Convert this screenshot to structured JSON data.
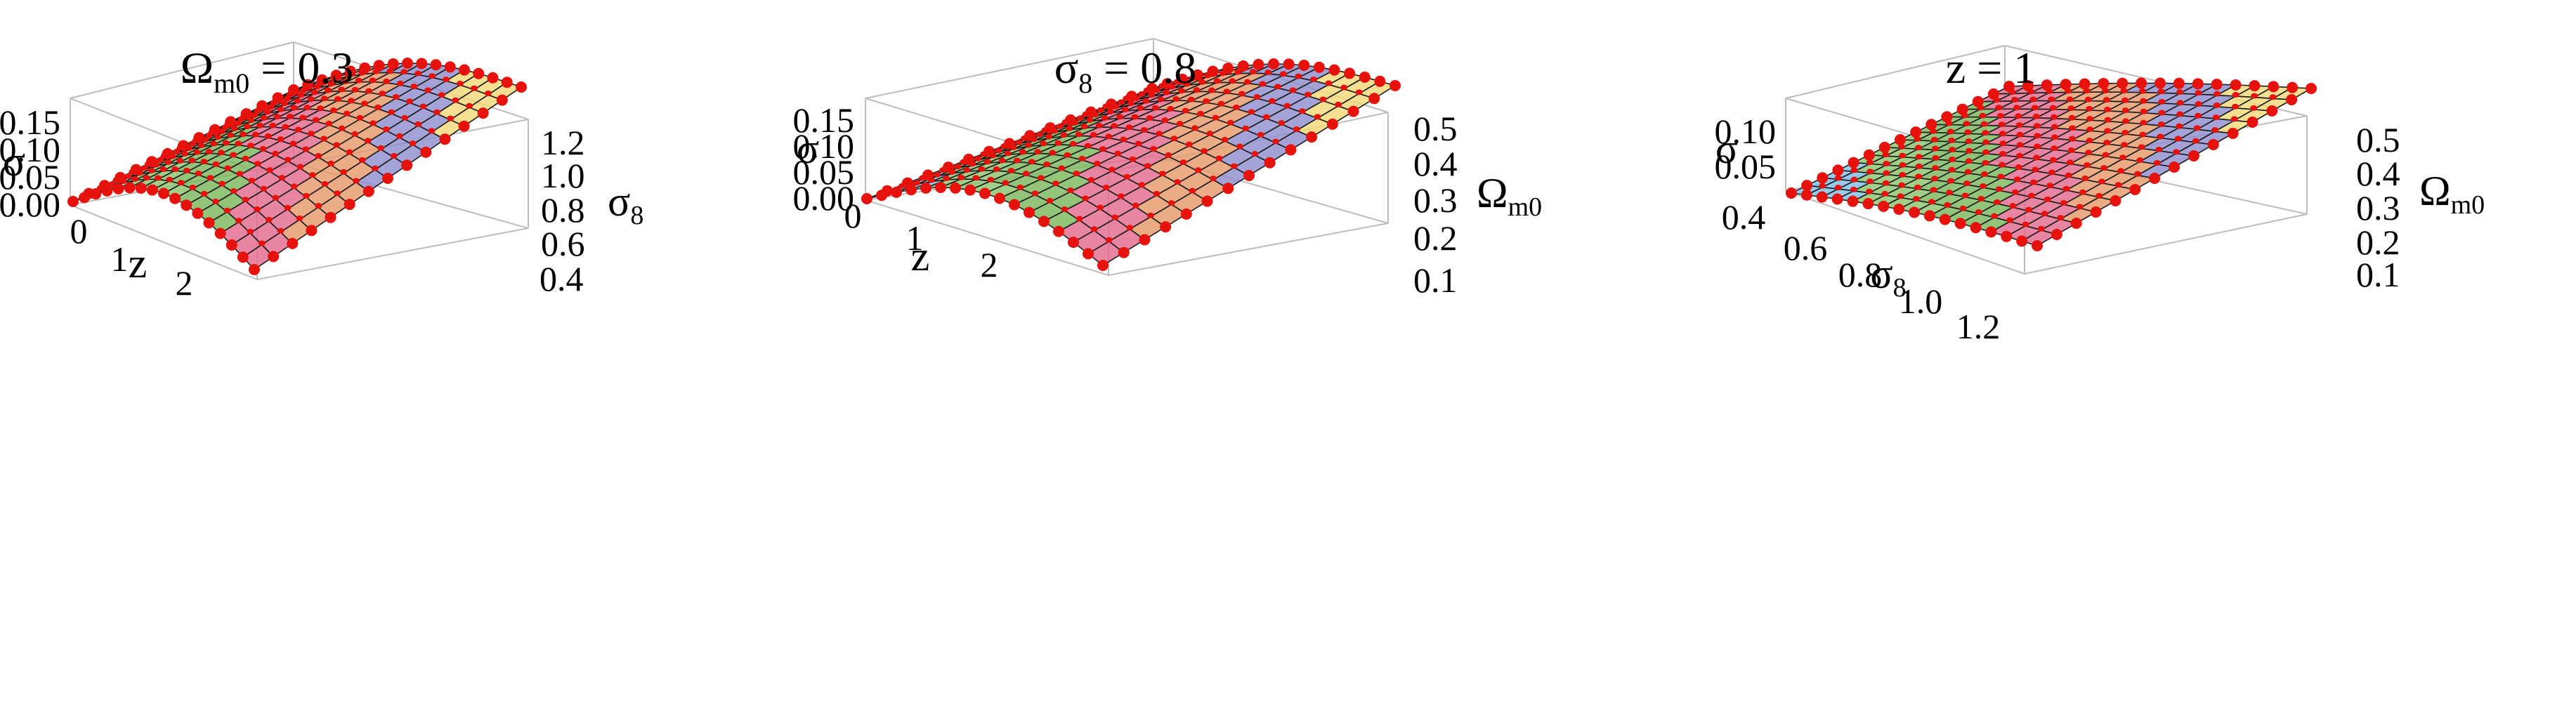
{
  "chart_data": [
    {
      "type": "surface3d",
      "title_main": "Ω",
      "title_sub": "m0",
      "title_rest": " = 0.3",
      "axis1": {
        "label": "z",
        "sub": "",
        "ticks": [
          "0",
          "1",
          "2"
        ],
        "range": [
          0,
          3
        ]
      },
      "axis2": {
        "label": "σ",
        "sub": "8",
        "ticks": [
          "0.4",
          "0.6",
          "0.8",
          "1.0",
          "1.2"
        ],
        "range": [
          0.35,
          1.3
        ]
      },
      "zaxis": {
        "label": "σ",
        "ticks": [
          "0.00",
          "0.05",
          "0.10",
          "0.15"
        ],
        "range": [
          0,
          0.16
        ]
      },
      "grid": [
        16,
        14
      ],
      "marker_color": "#e8120c"
    },
    {
      "type": "surface3d",
      "title_main": "σ",
      "title_sub": "8",
      "title_rest": " = 0.8",
      "axis1": {
        "label": "z",
        "sub": "",
        "ticks": [
          "0",
          "1",
          "2"
        ],
        "range": [
          0,
          3
        ]
      },
      "axis2": {
        "label": "Ω",
        "sub": "m0",
        "ticks": [
          "0.1",
          "0.2",
          "0.3",
          "0.4",
          "0.5"
        ],
        "range": [
          0.08,
          0.55
        ]
      },
      "zaxis": {
        "label": "σ",
        "ticks": [
          "0.00",
          "0.05",
          "0.10",
          "0.15"
        ],
        "range": [
          0,
          0.16
        ]
      },
      "grid": [
        16,
        14
      ],
      "marker_color": "#e8120c"
    },
    {
      "type": "surface3d",
      "title_main": "z = 1",
      "title_sub": "",
      "title_rest": "",
      "axis1": {
        "label": "σ",
        "sub": "8",
        "ticks": [
          "0.4",
          "0.6",
          "0.8",
          "1.0",
          "1.2"
        ],
        "range": [
          0.35,
          1.3
        ]
      },
      "axis2": {
        "label": "Ω",
        "sub": "m0",
        "ticks": [
          "0.1",
          "0.2",
          "0.3",
          "0.4",
          "0.5"
        ],
        "range": [
          0.08,
          0.55
        ]
      },
      "zaxis": {
        "label": "σ",
        "ticks": [
          "0.05",
          "0.10"
        ],
        "range": [
          0,
          0.12
        ]
      },
      "grid": [
        16,
        14
      ],
      "marker_color": "#e8120c"
    }
  ]
}
